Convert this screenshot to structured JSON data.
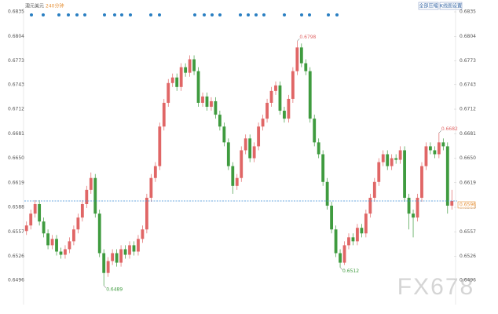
{
  "chart_data": {
    "type": "candlestick",
    "title": "澳元美元",
    "subtitle": "240分钟",
    "buttons": [
      "全部压缩",
      "K线图设置"
    ],
    "watermark": "FX678",
    "up_color": "#e06666",
    "down_color": "#3f9b3f",
    "ylim": [
      0.6468,
      0.684
    ],
    "yticks": [
      0.6835,
      0.6804,
      0.6773,
      0.6743,
      0.6712,
      0.6681,
      {
        "value": 0.665,
        "label": "0.6650"
      },
      0.6619,
      0.6588,
      0.6557,
      0.6526,
      0.6496
    ],
    "last_price": 0.6596,
    "extremes": [
      0.6798,
      0.6489,
      0.6512,
      0.6682
    ],
    "open": [
      0.6558,
      0.6565,
      0.658,
      0.6592,
      0.657,
      0.6555,
      0.654,
      0.6548,
      0.6532,
      0.6528,
      0.6535,
      0.6545,
      0.656,
      0.6575,
      0.6592,
      0.661,
      0.6625,
      0.658,
      0.653,
      0.6505,
      0.652,
      0.653,
      0.6518,
      0.6535,
      0.6528,
      0.654,
      0.6532,
      0.6548,
      0.656,
      0.66,
      0.6625,
      0.664,
      0.669,
      0.672,
      0.6745,
      0.6752,
      0.674,
      0.6765,
      0.6758,
      0.6775,
      0.676,
      0.672,
      0.6728,
      0.6715,
      0.6722,
      0.6705,
      0.669,
      0.667,
      0.664,
      0.6615,
      0.6625,
      0.666,
      0.6675,
      0.665,
      0.6665,
      0.669,
      0.67,
      0.672,
      0.6735,
      0.6742,
      0.671,
      0.67,
      0.6725,
      0.676,
      0.679,
      0.677,
      0.676,
      0.67,
      0.667,
      0.6655,
      0.662,
      0.659,
      0.656,
      0.653,
      0.6518,
      0.654,
      0.655,
      0.6545,
      0.6562,
      0.6555,
      0.658,
      0.66,
      0.662,
      0.6645,
      0.6655,
      0.664,
      0.665,
      0.6648,
      0.666,
      0.66,
      0.658,
      0.6575,
      0.66,
      0.664,
      0.6665,
      0.666,
      0.6655,
      0.667,
      0.6665,
      0.659
    ],
    "high": [
      0.657,
      0.6585,
      0.6597,
      0.6597,
      0.6575,
      0.656,
      0.6553,
      0.6553,
      0.6537,
      0.654,
      0.655,
      0.6565,
      0.658,
      0.6597,
      0.6615,
      0.6632,
      0.663,
      0.6585,
      0.6535,
      0.6525,
      0.6535,
      0.6535,
      0.654,
      0.654,
      0.6545,
      0.6545,
      0.6553,
      0.6565,
      0.6605,
      0.663,
      0.6645,
      0.6695,
      0.6725,
      0.675,
      0.6757,
      0.6757,
      0.677,
      0.677,
      0.678,
      0.678,
      0.6765,
      0.6733,
      0.6733,
      0.6727,
      0.6727,
      0.671,
      0.6695,
      0.6675,
      0.6645,
      0.663,
      0.6665,
      0.668,
      0.668,
      0.667,
      0.6695,
      0.6705,
      0.6725,
      0.674,
      0.6747,
      0.6747,
      0.6715,
      0.673,
      0.6765,
      0.6798,
      0.6795,
      0.6775,
      0.6765,
      0.6705,
      0.6675,
      0.666,
      0.6625,
      0.6595,
      0.6565,
      0.6535,
      0.6545,
      0.6555,
      0.6555,
      0.6567,
      0.6567,
      0.6585,
      0.6605,
      0.6625,
      0.665,
      0.666,
      0.666,
      0.6655,
      0.6655,
      0.6665,
      0.6665,
      0.6605,
      0.6585,
      0.6605,
      0.6645,
      0.667,
      0.667,
      0.6665,
      0.6682,
      0.6675,
      0.667,
      0.661
    ],
    "low": [
      0.6553,
      0.656,
      0.6575,
      0.6565,
      0.655,
      0.6535,
      0.6535,
      0.6527,
      0.6523,
      0.6523,
      0.653,
      0.654,
      0.6555,
      0.657,
      0.6587,
      0.6605,
      0.6575,
      0.6525,
      0.6489,
      0.65,
      0.6515,
      0.6513,
      0.6513,
      0.6523,
      0.6523,
      0.6527,
      0.6527,
      0.6543,
      0.6555,
      0.6595,
      0.662,
      0.6635,
      0.6685,
      0.6715,
      0.674,
      0.6735,
      0.6735,
      0.6753,
      0.6753,
      0.6755,
      0.6715,
      0.6715,
      0.671,
      0.671,
      0.67,
      0.6685,
      0.6665,
      0.6635,
      0.6605,
      0.661,
      0.662,
      0.6655,
      0.6645,
      0.6645,
      0.666,
      0.6685,
      0.6695,
      0.6715,
      0.673,
      0.6705,
      0.6695,
      0.6695,
      0.672,
      0.6755,
      0.6765,
      0.6755,
      0.6695,
      0.6665,
      0.665,
      0.6615,
      0.6585,
      0.6555,
      0.6525,
      0.6512,
      0.6515,
      0.6535,
      0.654,
      0.654,
      0.655,
      0.655,
      0.6575,
      0.6595,
      0.6615,
      0.664,
      0.6635,
      0.6635,
      0.6643,
      0.6643,
      0.6595,
      0.656,
      0.655,
      0.657,
      0.6595,
      0.6635,
      0.6655,
      0.665,
      0.665,
      0.666,
      0.658,
      0.6585
    ],
    "close": [
      0.6565,
      0.658,
      0.6592,
      0.657,
      0.6555,
      0.654,
      0.6548,
      0.6532,
      0.6528,
      0.6535,
      0.6545,
      0.656,
      0.6575,
      0.6592,
      0.661,
      0.6625,
      0.658,
      0.653,
      0.6505,
      0.652,
      0.653,
      0.6518,
      0.6535,
      0.6528,
      0.654,
      0.6532,
      0.6548,
      0.656,
      0.66,
      0.6625,
      0.664,
      0.669,
      0.672,
      0.6745,
      0.6752,
      0.674,
      0.6765,
      0.6758,
      0.6775,
      0.676,
      0.672,
      0.6728,
      0.6715,
      0.6722,
      0.6705,
      0.669,
      0.667,
      0.664,
      0.6615,
      0.6625,
      0.666,
      0.6675,
      0.665,
      0.6665,
      0.669,
      0.67,
      0.672,
      0.6735,
      0.6742,
      0.671,
      0.67,
      0.6725,
      0.676,
      0.679,
      0.677,
      0.676,
      0.67,
      0.667,
      0.6655,
      0.662,
      0.659,
      0.656,
      0.653,
      0.6518,
      0.654,
      0.655,
      0.6545,
      0.6562,
      0.6555,
      0.658,
      0.66,
      0.662,
      0.6645,
      0.6655,
      0.664,
      0.665,
      0.6648,
      0.666,
      0.66,
      0.658,
      0.6575,
      0.66,
      0.664,
      0.6665,
      0.666,
      0.6655,
      0.667,
      0.6665,
      0.659,
      0.6596
    ]
  }
}
